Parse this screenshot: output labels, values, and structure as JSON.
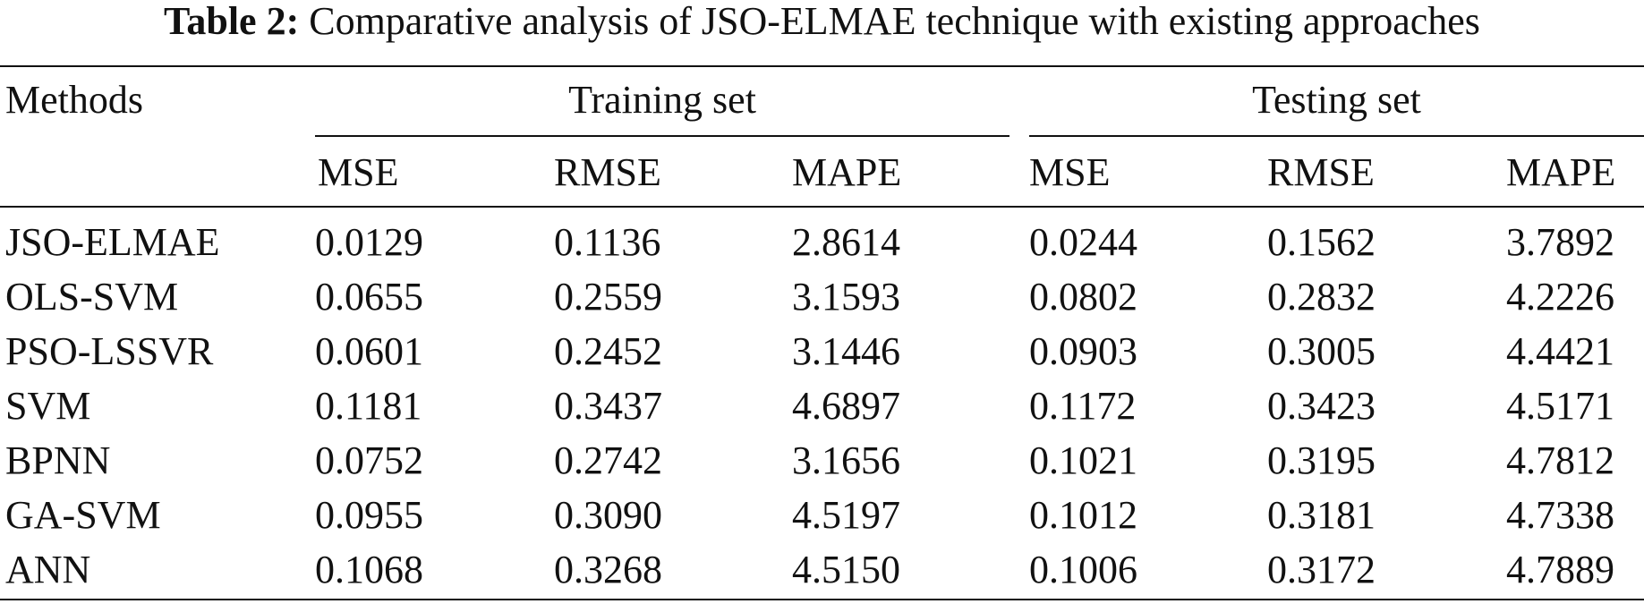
{
  "caption": {
    "label": "Table 2:",
    "text": "Comparative analysis of JSO-ELMAE technique with existing approaches"
  },
  "table": {
    "methods_header": "Methods",
    "groups": [
      "Training set",
      "Testing set"
    ],
    "columns": [
      "MSE",
      "RMSE",
      "MAPE",
      "MSE",
      "RMSE",
      "MAPE"
    ],
    "rows": [
      {
        "method": "JSO-ELMAE",
        "values": [
          "0.0129",
          "0.1136",
          "2.8614",
          "0.0244",
          "0.1562",
          "3.7892"
        ]
      },
      {
        "method": "OLS-SVM",
        "values": [
          "0.0655",
          "0.2559",
          "3.1593",
          "0.0802",
          "0.2832",
          "4.2226"
        ]
      },
      {
        "method": "PSO-LSSVR",
        "values": [
          "0.0601",
          "0.2452",
          "3.1446",
          "0.0903",
          "0.3005",
          "4.4421"
        ]
      },
      {
        "method": "SVM",
        "values": [
          "0.1181",
          "0.3437",
          "4.6897",
          "0.1172",
          "0.3423",
          "4.5171"
        ]
      },
      {
        "method": "BPNN",
        "values": [
          "0.0752",
          "0.2742",
          "3.1656",
          "0.1021",
          "0.3195",
          "4.7812"
        ]
      },
      {
        "method": "GA-SVM",
        "values": [
          "0.0955",
          "0.3090",
          "4.5197",
          "0.1012",
          "0.3181",
          "4.7338"
        ]
      },
      {
        "method": "ANN",
        "values": [
          "0.1068",
          "0.3268",
          "4.5150",
          "0.1006",
          "0.3172",
          "4.7889"
        ]
      }
    ]
  }
}
